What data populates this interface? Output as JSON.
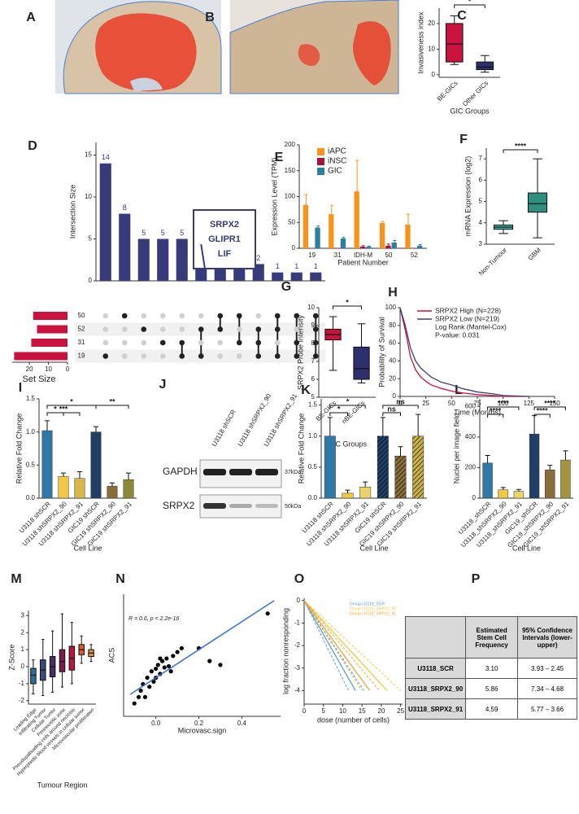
{
  "panels": [
    "A",
    "B",
    "C",
    "D",
    "E",
    "F",
    "G",
    "H",
    "I",
    "J",
    "K",
    "L",
    "M",
    "N",
    "O",
    "P"
  ],
  "chart_data": [
    {
      "type": "box",
      "y_label": "Invasiveness index",
      "x_label": "GIC Groups",
      "categories": [
        "BE-GICs",
        "Other GICs"
      ],
      "stats": [
        [
          4,
          5,
          12,
          20,
          23
        ],
        [
          1,
          2,
          3,
          5,
          7.5
        ]
      ],
      "colors": [
        "#c8133f",
        "#2e2f6e"
      ],
      "ylim": [
        -1,
        26
      ],
      "yticks": [
        0,
        10,
        20
      ],
      "significance": [
        {
          "label": "*",
          "groups": [
            "BE-GICs",
            "Other GICs"
          ]
        }
      ]
    },
    {
      "type": "upset",
      "y_label": "Intersection Size",
      "values": [
        14,
        8,
        5,
        5,
        5,
        3,
        2,
        2,
        2,
        1,
        1,
        1
      ],
      "color": "#383b7a",
      "ylim": [
        0,
        16.5
      ],
      "yticks": [
        0,
        5,
        10,
        15
      ],
      "members": [
        [
          "19"
        ],
        [
          "50"
        ],
        [
          "52"
        ],
        [
          "31"
        ],
        [
          "31",
          "19"
        ],
        [
          "52",
          "19"
        ],
        [
          "50",
          "52"
        ],
        [
          "50",
          "31"
        ],
        [
          "52",
          "31",
          "19"
        ],
        [
          "50",
          "52",
          "19"
        ],
        [
          "50",
          "31",
          "19"
        ],
        [
          "50",
          "52",
          "31",
          "19"
        ]
      ],
      "sets": [
        "50",
        "52",
        "31",
        "19"
      ],
      "set_values": [
        18,
        16,
        19,
        28
      ],
      "set_color": "#c8133f",
      "set_label": "Set Size",
      "set_xlim": [
        29,
        0
      ],
      "set_xticks": [
        20,
        10,
        0
      ],
      "callout": [
        "SRPX2",
        "GLIPR1",
        "LIF"
      ]
    },
    {
      "type": "bar",
      "y_label": "Expression Level (TPM)",
      "x_label": "Patient Number",
      "categories": [
        "19",
        "31",
        "IDH-M",
        "50",
        "52"
      ],
      "series": [
        {
          "name": "iAPC",
          "color": "#f7941d",
          "values": [
            84,
            66,
            110,
            49,
            46
          ],
          "errors": [
            20,
            17,
            60,
            3,
            20
          ]
        },
        {
          "name": "iNSC",
          "color": "#a3123f",
          "values": [
            0,
            0,
            3,
            5,
            0
          ],
          "errors": [
            0,
            0,
            2,
            3,
            0
          ]
        },
        {
          "name": "GIC",
          "color": "#2c7fa0",
          "values": [
            40,
            19,
            3,
            11,
            5
          ],
          "errors": [
            3,
            2,
            1,
            4,
            2
          ]
        }
      ],
      "ylim": [
        0,
        200
      ],
      "yticks": [
        0,
        50,
        100,
        150,
        200
      ]
    },
    {
      "type": "box",
      "y_label": "mRNA Expression (log2)",
      "categories": [
        "Non-Tumour",
        "GBM"
      ],
      "stats": [
        [
          3.5,
          3.7,
          3.8,
          3.9,
          4.1
        ],
        [
          3.3,
          4.5,
          4.9,
          5.4,
          7.0
        ]
      ],
      "colors": [
        "#46b9a8",
        "#2f8f7f"
      ],
      "ylim": [
        3,
        7.5
      ],
      "yticks": [
        3,
        4,
        5,
        6,
        7
      ],
      "significance": [
        {
          "label": "****",
          "groups": [
            "Non-Tumour",
            "GBM"
          ]
        }
      ]
    },
    {
      "type": "box",
      "y_label": "SRPX2 Probe Intensity",
      "x_label": "GIC Groups",
      "categories": [
        "BE-GICs",
        "nBE-GICs"
      ],
      "stats": [
        [
          6.5,
          8.2,
          8.5,
          8.8,
          9.5
        ],
        [
          5.8,
          6.0,
          6.6,
          7.8,
          9.1
        ]
      ],
      "colors": [
        "#c8133f",
        "#2e2f6e"
      ],
      "ylim": [
        5,
        10
      ],
      "yticks": [
        5,
        6,
        7,
        8,
        9,
        10
      ],
      "significance": [
        {
          "label": "*",
          "groups": [
            "BE-GICs",
            "nBE-GICs"
          ]
        }
      ]
    },
    {
      "type": "line",
      "y_label": "Probability of Survival",
      "x_label": "Time (Months)",
      "x": [
        0,
        5,
        10,
        15,
        20,
        25,
        30,
        40,
        50,
        60,
        75,
        90,
        100,
        125
      ],
      "series": [
        {
          "name": "SRPX2 High (N=228)",
          "color": "#c8133f",
          "values": [
            100,
            75,
            45,
            30,
            22,
            17,
            13,
            9,
            6,
            4,
            2,
            1,
            0,
            0
          ]
        },
        {
          "name": "SRPX2 Low (N=219)",
          "color": "#3a3f7a",
          "values": [
            100,
            80,
            55,
            40,
            32,
            27,
            22,
            16,
            13,
            9,
            5,
            3,
            1,
            0
          ]
        }
      ],
      "annotations": [
        "Log Rank (Mantel-Cox)",
        "P-value: 0.031"
      ],
      "xlim": [
        0,
        150
      ],
      "xticks": [
        0,
        25,
        50,
        75,
        100,
        125,
        150
      ],
      "ylim": [
        0,
        100
      ],
      "yticks": [
        0,
        20,
        40,
        60,
        80,
        100
      ]
    },
    {
      "type": "bar",
      "y_label": "Relative Fold Change",
      "x_label": "Cell Line",
      "categories": [
        "U3118 shSCR",
        "U3118 shSRPX2_90",
        "U3118 shSRPX2_91",
        "GIC19 shSCR",
        "GIC19 shSRPX2_90",
        "GIC19 shSRPX2_91"
      ],
      "values": [
        1.02,
        0.33,
        0.3,
        1.0,
        0.18,
        0.28
      ],
      "errors": [
        0.15,
        0.05,
        0.1,
        0.08,
        0.05,
        0.1
      ],
      "colors": [
        "#2f78a8",
        "#f2c744",
        "#d8b84a",
        "#1f3f66",
        "#8a6d3b",
        "#8a8a3a"
      ],
      "ylim": [
        0,
        1.5
      ],
      "yticks": [
        {
          "value": 0,
          "label": "0.0"
        },
        0.5,
        {
          "value": 1,
          "label": "1.0"
        },
        1.5
      ],
      "significance": [
        {
          "label": "*",
          "groups": [
            "U3118 shSCR",
            "GIC19 shSCR"
          ]
        },
        {
          "label": "*",
          "groups": [
            "U3118 shSCR",
            "U3118 shSRPX2_90"
          ]
        },
        {
          "label": "**",
          "groups": [
            "GIC19 shSCR",
            "GIC19 shSRPX2_91"
          ]
        },
        {
          "label": "***",
          "groups": [
            "U3118 shSCR",
            "U3118 shSRPX2_91"
          ]
        }
      ]
    },
    {
      "type": "bar",
      "y_label": "Relative Fold Change",
      "x_label": "Cell Line",
      "categories": [
        "U3118 shSCR",
        "U3118 shSRPX2_90",
        "U3118 shSRPX2_91",
        "GIC19 shSCR",
        "GIC19 shSRPX2_90",
        "GIC19 shSRPX2_91"
      ],
      "values": [
        1.0,
        0.08,
        0.18,
        1.0,
        0.68,
        1.0
      ],
      "errors": [
        0.3,
        0.05,
        0.08,
        0.3,
        0.15,
        0.35
      ],
      "colors": [
        "#2f78a8",
        "#f2c744",
        "#e9d36b",
        "#1f3f66",
        "#8a6d3b",
        "#c9b24a"
      ],
      "hatch": [
        false,
        false,
        false,
        true,
        true,
        true
      ],
      "ylim": [
        0,
        1.6
      ],
      "yticks": [
        {
          "value": 0,
          "label": "0.0"
        },
        0.5,
        {
          "value": 1,
          "label": "1.0"
        },
        1.5
      ],
      "significance": [
        {
          "label": "*",
          "groups": [
            "U3118 shSCR",
            "U3118 shSRPX2_91"
          ]
        },
        {
          "label": "*",
          "groups": [
            "U3118 shSCR",
            "U3118 shSRPX2_90"
          ]
        },
        {
          "label": "ns",
          "groups": [
            "GIC19 shSCR",
            "GIC19 shSRPX2_91"
          ]
        },
        {
          "label": "ns",
          "groups": [
            "GIC19 shSCR",
            "GIC19 shSRPX2_90"
          ]
        }
      ]
    },
    {
      "type": "bar",
      "y_label": "Nuclei per image field",
      "x_label": "Cell Line",
      "categories": [
        "U3118_shSCR",
        "U3118_shSRPX2_90",
        "U3118_shSRPX2_91",
        "GIC19_shSCR",
        "GIC19_shSRPX2_90",
        "GIC19_shSRPX2_91"
      ],
      "values": [
        230,
        55,
        45,
        420,
        185,
        250
      ],
      "errors": [
        50,
        15,
        12,
        120,
        30,
        60
      ],
      "colors": [
        "#2f78a8",
        "#f2c744",
        "#e9d36b",
        "#1f3f66",
        "#8a6d3b",
        "#a39440"
      ],
      "ylim": [
        0,
        650
      ],
      "yticks": [
        0,
        200,
        400,
        600
      ],
      "significance": [
        {
          "label": "****",
          "groups": [
            "U3118_shSCR",
            "U3118_shSRPX2_91"
          ]
        },
        {
          "label": "****",
          "groups": [
            "U3118_shSCR",
            "U3118_shSRPX2_90"
          ]
        },
        {
          "label": "****",
          "groups": [
            "GIC19_shSCR",
            "GIC19_shSRPX2_91"
          ]
        },
        {
          "label": "****",
          "groups": [
            "GIC19_shSCR",
            "GIC19_shSRPX2_90"
          ]
        }
      ]
    },
    {
      "type": "box",
      "y_label": "Z-Score",
      "x_label": "Tumour Region",
      "categories": [
        "Leading Edge",
        "Infiltrating Tumor",
        "Cellular Tumor",
        "Perinecrotic zone",
        "Pseudopalisading cells around necrosis",
        "Hyperplastic blood vessels in cellular tumor",
        "Microvascular proliferation"
      ],
      "stats": [
        [
          -1.6,
          -1.0,
          -0.5,
          -0.1,
          0.4
        ],
        [
          -1.7,
          -0.8,
          -0.2,
          0.4,
          1.6
        ],
        [
          -1.5,
          -0.6,
          0,
          0.6,
          2.1
        ],
        [
          -1.2,
          -0.3,
          0.3,
          1.0,
          3.1
        ],
        [
          -1.0,
          -0.2,
          0.5,
          1.2,
          2.6
        ],
        [
          0.2,
          0.7,
          1.0,
          1.3,
          1.8
        ],
        [
          0.3,
          0.6,
          0.8,
          1.0,
          1.3
        ]
      ],
      "colors": [
        "#2f6f8f",
        "#3a4a7a",
        "#4a2e5e",
        "#7a1f4a",
        "#b8173f",
        "#e4572e",
        "#f08a3c"
      ],
      "ylim": [
        -2.2,
        3.3
      ],
      "yticks": [
        -2,
        -1,
        0,
        1,
        2,
        3
      ]
    },
    {
      "type": "scatter",
      "y_label": "ACS",
      "x_label": "Microvasc.sign",
      "annotation": "R = 0.6, p < 2.2e-16",
      "x": [
        -0.1,
        -0.07,
        -0.05,
        -0.04,
        -0.03,
        -0.02,
        -0.01,
        0,
        0,
        0.01,
        0.02,
        0.03,
        0.04,
        0.05,
        0.06,
        0.08,
        0.1,
        -0.08,
        -0.06,
        0.02,
        0.07,
        0.12,
        0.2,
        0.25,
        0.3,
        0.52
      ],
      "values": [
        -0.25,
        -0.15,
        -0.2,
        -0.05,
        -0.12,
        0.0,
        -0.08,
        0.02,
        -0.05,
        0.05,
        -0.02,
        0.08,
        0.03,
        0.1,
        0.04,
        0.12,
        0.15,
        -0.2,
        -0.1,
        0.1,
        0.0,
        0.18,
        0.18,
        0.08,
        0.05,
        0.45
      ],
      "color": "#000000",
      "fit": {
        "x": [
          -0.12,
          0.55
        ],
        "values": [
          -0.18,
          0.55
        ],
        "color": "#3b6fd0"
      },
      "xlim": [
        -0.15,
        0.58
      ],
      "xticks": [
        {
          "value": 0,
          "label": "0.0"
        },
        0.2,
        0.4
      ],
      "ylim": [
        -0.35,
        0.6
      ]
    },
    {
      "type": "line",
      "y_label": "log fraction nonresponding",
      "x_label": "dose (number of cells)",
      "series": [
        {
          "name": "Group U3118_SCR",
          "color": "#5aa0d0",
          "x": [
            0,
            13.3
          ],
          "values": [
            0,
            -4
          ],
          "ci_ends": [
            11.5,
            15.5
          ]
        },
        {
          "name": "Group U3118_SRPX2_90",
          "color": "#f2c744",
          "x": [
            0,
            21.5
          ],
          "values": [
            0,
            -4
          ],
          "ci_ends": [
            17,
            25
          ]
        },
        {
          "name": "Group U3118_SRPX2_91",
          "color": "#e8a93a",
          "x": [
            0,
            17
          ],
          "values": [
            0,
            -4
          ],
          "ci_ends": [
            15,
            19.5
          ]
        }
      ],
      "xlim": [
        0,
        25.5
      ],
      "xticks": [
        0,
        5,
        10,
        15,
        20,
        25
      ],
      "ylim": [
        -4.6,
        0.1
      ],
      "yticks": [
        0,
        -1,
        -2,
        -3,
        -4
      ]
    }
  ],
  "blot": {
    "lanes": [
      "U3118 shSCR",
      "U3118 shSRPX2_90",
      "U3118 shSRPX2_91"
    ],
    "proteins": [
      "GAPDH",
      "SRPX2"
    ],
    "markers": [
      "37kDa",
      "50kDa"
    ]
  },
  "table": {
    "headers": [
      "Estimated Stem Cell Frequency",
      "95% Confidence Intervals (lower-upper)"
    ],
    "rows": [
      [
        "U3118_SCR",
        "3.10",
        "3.93 – 2.45"
      ],
      [
        "U3118_SRPX2_90",
        "5.86",
        "7.34 – 4.68"
      ],
      [
        "U3118_SRPX2_91",
        "4.59",
        "5.77 – 3.66"
      ]
    ]
  }
}
